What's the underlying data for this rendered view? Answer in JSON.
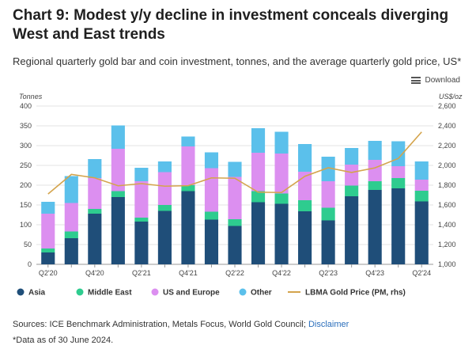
{
  "title": "Chart 9: Modest y/y decline in investment conceals diverging West and East trends",
  "subtitle": "Regional quarterly gold bar and coin investment, tonnes, and the average quarterly gold price, US*",
  "download_label": "Download",
  "sources_text": "Sources: ICE Benchmark Administration, Metals Focus, World Gold Council; ",
  "disclaimer_label": "Disclaimer",
  "note": "*Data as of 30 June 2024.",
  "colors": {
    "asia": "#1f4e79",
    "middle_east": "#2ecc8f",
    "us_europe": "#dc8ff0",
    "other": "#5bc0eb",
    "price": "#d4a44c"
  },
  "chart_data": {
    "type": "bar",
    "stacked": true,
    "ylabel": "Tonnes",
    "y2label": "US$/oz",
    "ylim": [
      0,
      400
    ],
    "y2lim": [
      1000,
      2600
    ],
    "yticks": [
      0,
      50,
      100,
      150,
      200,
      250,
      300,
      350,
      400
    ],
    "y2ticks": [
      "1,000",
      "1,200",
      "1,400",
      "1,600",
      "1,800",
      "2,000",
      "2,200",
      "2,400",
      "2,600"
    ],
    "categories": [
      "Q2'20",
      "Q3'20",
      "Q4'20",
      "Q1'21",
      "Q2'21",
      "Q3'21",
      "Q4'21",
      "Q1'22",
      "Q2'22",
      "Q3'22",
      "Q4'22",
      "Q1'23",
      "Q2'23",
      "Q3'23",
      "Q4'23",
      "Q1'24",
      "Q2'24"
    ],
    "tick_labels": [
      "Q2'20",
      "",
      "Q4'20",
      "",
      "Q2'21",
      "",
      "Q4'21",
      "",
      "Q2'22",
      "",
      "Q4'22",
      "",
      "Q2'23",
      "",
      "Q4'23",
      "",
      "Q2'24"
    ],
    "series": [
      {
        "name": "Asia",
        "key": "asia",
        "values": [
          30,
          66,
          128,
          170,
          108,
          135,
          185,
          113,
          97,
          157,
          153,
          134,
          111,
          172,
          188,
          192,
          159
        ]
      },
      {
        "name": "Middle East",
        "key": "middle_east",
        "values": [
          10,
          17,
          12,
          15,
          10,
          15,
          15,
          20,
          17,
          28,
          26,
          28,
          32,
          27,
          22,
          26,
          27
        ]
      },
      {
        "name": "US and Europe",
        "key": "us_europe",
        "values": [
          88,
          72,
          78,
          107,
          92,
          83,
          98,
          110,
          107,
          97,
          101,
          72,
          67,
          53,
          54,
          30,
          28
        ]
      },
      {
        "name": "Other",
        "key": "other",
        "values": [
          30,
          68,
          48,
          59,
          34,
          27,
          25,
          40,
          38,
          62,
          55,
          70,
          62,
          42,
          48,
          63,
          46
        ]
      }
    ],
    "line": {
      "name": "LBMA Gold Price (PM, rhs)",
      "values": [
        1711,
        1909,
        1874,
        1794,
        1816,
        1790,
        1795,
        1874,
        1870,
        1729,
        1726,
        1890,
        1976,
        1929,
        1975,
        2070,
        2338
      ]
    },
    "legend_position": "bottom-left"
  }
}
